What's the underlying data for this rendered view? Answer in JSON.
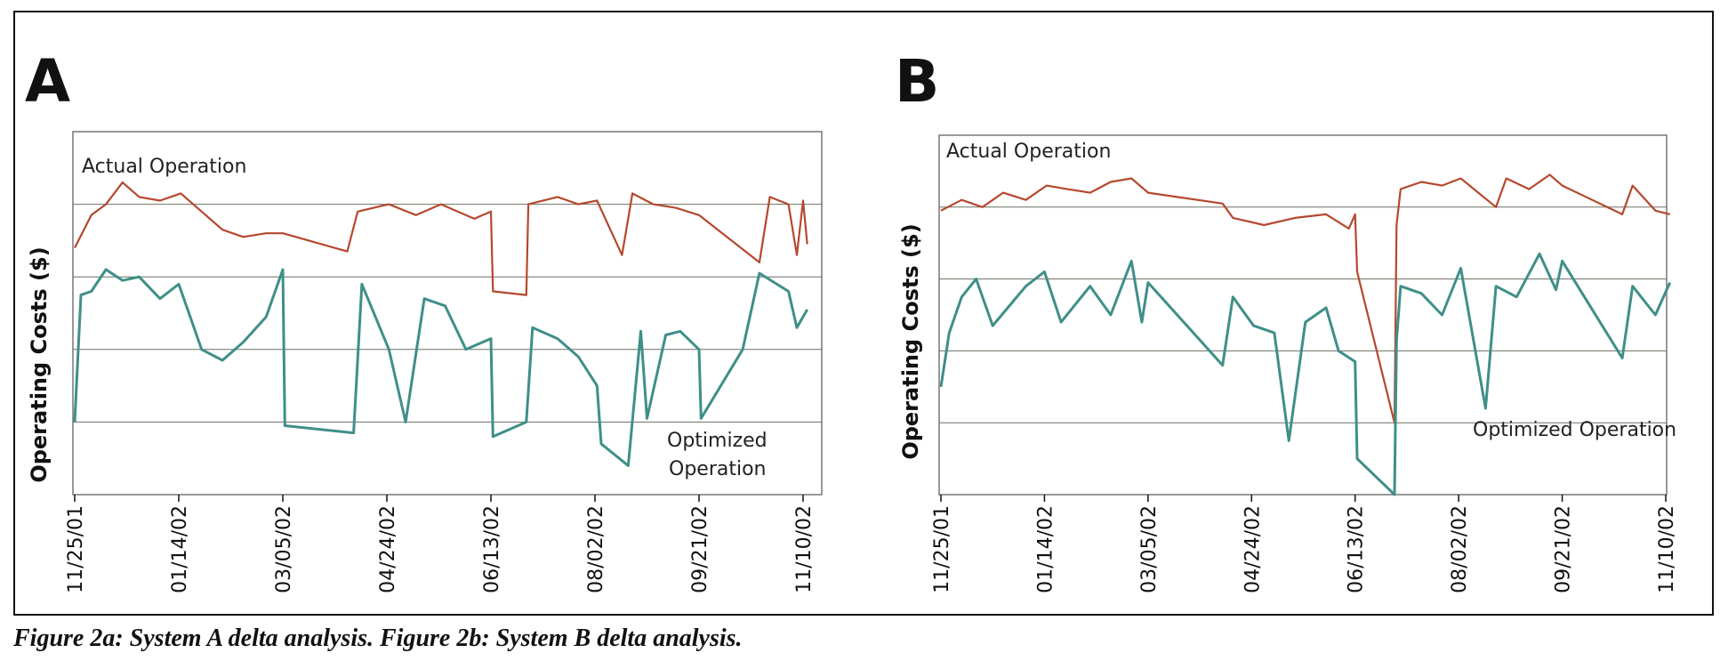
{
  "caption": "Figure 2a: System A delta analysis. Figure 2b: System B delta analysis.",
  "colors": {
    "actual": "#b5482d",
    "optimized": "#3f8f88",
    "grid": "#6f6f62",
    "frame": "#777777"
  },
  "chart_data": [
    {
      "type": "line",
      "panel": "A",
      "title": "",
      "xlabel": "",
      "ylabel": "Operating Costs ($)",
      "x_ticks": [
        "11/25/01",
        "01/14/02",
        "03/05/02",
        "04/24/02",
        "06/13/02",
        "08/02/02",
        "09/21/02",
        "11/10/02"
      ],
      "x_range": [
        "2001-11-25",
        "2002-11-14"
      ],
      "ylim": [
        0,
        100
      ],
      "y_ticks_labeled": false,
      "grid": "horizontal",
      "legend": "inline labels",
      "series": [
        {
          "name": "Actual Operation",
          "points": [
            [
              "2001-11-25",
              68
            ],
            [
              "2001-12-03",
              77
            ],
            [
              "2001-12-10",
              80
            ],
            [
              "2001-12-18",
              86
            ],
            [
              "2001-12-26",
              82
            ],
            [
              "2002-01-05",
              81
            ],
            [
              "2002-01-15",
              83
            ],
            [
              "2002-01-25",
              78
            ],
            [
              "2002-02-04",
              73
            ],
            [
              "2002-02-14",
              71
            ],
            [
              "2002-02-25",
              72
            ],
            [
              "2002-03-05",
              72
            ],
            [
              "2002-04-05",
              67
            ],
            [
              "2002-04-10",
              78
            ],
            [
              "2002-04-25",
              80
            ],
            [
              "2002-05-08",
              77
            ],
            [
              "2002-05-20",
              80
            ],
            [
              "2002-06-05",
              76
            ],
            [
              "2002-06-13",
              78
            ],
            [
              "2002-06-14",
              56
            ],
            [
              "2002-06-30",
              55
            ],
            [
              "2002-07-01",
              80
            ],
            [
              "2002-07-15",
              82
            ],
            [
              "2002-07-25",
              80
            ],
            [
              "2002-08-03",
              81
            ],
            [
              "2002-08-15",
              66
            ],
            [
              "2002-08-20",
              83
            ],
            [
              "2002-08-30",
              80
            ],
            [
              "2002-09-10",
              79
            ],
            [
              "2002-09-21",
              77
            ],
            [
              "2002-10-20",
              64
            ],
            [
              "2002-10-25",
              82
            ],
            [
              "2002-11-03",
              80
            ],
            [
              "2002-11-07",
              66
            ],
            [
              "2002-11-10",
              81
            ],
            [
              "2002-11-12",
              69
            ]
          ]
        },
        {
          "name": "Optimized Operation",
          "points": [
            [
              "2001-11-25",
              20
            ],
            [
              "2001-11-28",
              55
            ],
            [
              "2001-12-03",
              56
            ],
            [
              "2001-12-10",
              62
            ],
            [
              "2001-12-18",
              59
            ],
            [
              "2001-12-26",
              60
            ],
            [
              "2002-01-05",
              54
            ],
            [
              "2002-01-14",
              58
            ],
            [
              "2002-01-25",
              40
            ],
            [
              "2002-02-04",
              37
            ],
            [
              "2002-02-14",
              42
            ],
            [
              "2002-02-25",
              49
            ],
            [
              "2002-03-05",
              62
            ],
            [
              "2002-03-06",
              19
            ],
            [
              "2002-04-08",
              17
            ],
            [
              "2002-04-12",
              58
            ],
            [
              "2002-04-25",
              40
            ],
            [
              "2002-05-03",
              20
            ],
            [
              "2002-05-12",
              54
            ],
            [
              "2002-05-22",
              52
            ],
            [
              "2002-06-01",
              40
            ],
            [
              "2002-06-13",
              43
            ],
            [
              "2002-06-14",
              16
            ],
            [
              "2002-06-30",
              20
            ],
            [
              "2002-07-03",
              46
            ],
            [
              "2002-07-15",
              43
            ],
            [
              "2002-07-25",
              38
            ],
            [
              "2002-08-03",
              30
            ],
            [
              "2002-08-05",
              14
            ],
            [
              "2002-08-18",
              8
            ],
            [
              "2002-08-24",
              45
            ],
            [
              "2002-08-27",
              21
            ],
            [
              "2002-09-05",
              44
            ],
            [
              "2002-09-12",
              45
            ],
            [
              "2002-09-21",
              40
            ],
            [
              "2002-09-22",
              21
            ],
            [
              "2002-10-12",
              40
            ],
            [
              "2002-10-20",
              61
            ],
            [
              "2002-11-03",
              56
            ],
            [
              "2002-11-07",
              46
            ],
            [
              "2002-11-12",
              51
            ]
          ]
        }
      ],
      "annotations": [
        "A",
        "Actual Operation",
        "Optimized",
        "Operation"
      ]
    },
    {
      "type": "line",
      "panel": "B",
      "title": "",
      "xlabel": "",
      "ylabel": "Operating Costs ($)",
      "x_ticks": [
        "11/25/01",
        "01/14/02",
        "03/05/02",
        "04/24/02",
        "06/13/02",
        "08/02/02",
        "09/21/02",
        "11/10/02"
      ],
      "x_range": [
        "2001-11-25",
        "2002-11-14"
      ],
      "ylim": [
        0,
        100
      ],
      "y_ticks_labeled": false,
      "grid": "horizontal",
      "legend": "inline labels",
      "series": [
        {
          "name": "Actual Operation",
          "points": [
            [
              "2001-11-25",
              79
            ],
            [
              "2001-12-05",
              82
            ],
            [
              "2001-12-15",
              80
            ],
            [
              "2001-12-25",
              84
            ],
            [
              "2002-01-05",
              82
            ],
            [
              "2002-01-15",
              86
            ],
            [
              "2002-01-25",
              85
            ],
            [
              "2002-02-05",
              84
            ],
            [
              "2002-02-15",
              87
            ],
            [
              "2002-02-25",
              88
            ],
            [
              "2002-03-05",
              84
            ],
            [
              "2002-04-10",
              81
            ],
            [
              "2002-04-15",
              77
            ],
            [
              "2002-04-30",
              75
            ],
            [
              "2002-05-15",
              77
            ],
            [
              "2002-05-30",
              78
            ],
            [
              "2002-06-10",
              74
            ],
            [
              "2002-06-13",
              78
            ],
            [
              "2002-06-14",
              62
            ],
            [
              "2002-07-02",
              20
            ],
            [
              "2002-07-03",
              75
            ],
            [
              "2002-07-05",
              85
            ],
            [
              "2002-07-15",
              87
            ],
            [
              "2002-07-25",
              86
            ],
            [
              "2002-08-03",
              88
            ],
            [
              "2002-08-20",
              80
            ],
            [
              "2002-08-25",
              88
            ],
            [
              "2002-09-05",
              85
            ],
            [
              "2002-09-15",
              89
            ],
            [
              "2002-09-21",
              86
            ],
            [
              "2002-10-20",
              78
            ],
            [
              "2002-10-25",
              86
            ],
            [
              "2002-11-05",
              79
            ],
            [
              "2002-11-12",
              78
            ]
          ]
        },
        {
          "name": "Optimized Operation",
          "points": [
            [
              "2001-11-25",
              30
            ],
            [
              "2001-11-29",
              45
            ],
            [
              "2001-12-05",
              55
            ],
            [
              "2001-12-12",
              60
            ],
            [
              "2001-12-20",
              47
            ],
            [
              "2002-01-05",
              58
            ],
            [
              "2002-01-14",
              62
            ],
            [
              "2002-01-22",
              48
            ],
            [
              "2002-02-05",
              58
            ],
            [
              "2002-02-15",
              50
            ],
            [
              "2002-02-25",
              65
            ],
            [
              "2002-03-02",
              48
            ],
            [
              "2002-03-05",
              59
            ],
            [
              "2002-04-10",
              36
            ],
            [
              "2002-04-15",
              55
            ],
            [
              "2002-04-25",
              47
            ],
            [
              "2002-05-05",
              45
            ],
            [
              "2002-05-12",
              15
            ],
            [
              "2002-05-20",
              48
            ],
            [
              "2002-05-30",
              52
            ],
            [
              "2002-06-05",
              40
            ],
            [
              "2002-06-13",
              37
            ],
            [
              "2002-06-14",
              10
            ],
            [
              "2002-07-02",
              0
            ],
            [
              "2002-07-03",
              43
            ],
            [
              "2002-07-05",
              58
            ],
            [
              "2002-07-15",
              56
            ],
            [
              "2002-07-25",
              50
            ],
            [
              "2002-08-03",
              63
            ],
            [
              "2002-08-15",
              24
            ],
            [
              "2002-08-20",
              58
            ],
            [
              "2002-08-30",
              55
            ],
            [
              "2002-09-10",
              67
            ],
            [
              "2002-09-18",
              57
            ],
            [
              "2002-09-21",
              65
            ],
            [
              "2002-10-20",
              38
            ],
            [
              "2002-10-25",
              58
            ],
            [
              "2002-11-05",
              50
            ],
            [
              "2002-11-12",
              59
            ]
          ]
        }
      ],
      "annotations": [
        "B",
        "Actual Operation",
        "Optimized Operation"
      ]
    }
  ]
}
